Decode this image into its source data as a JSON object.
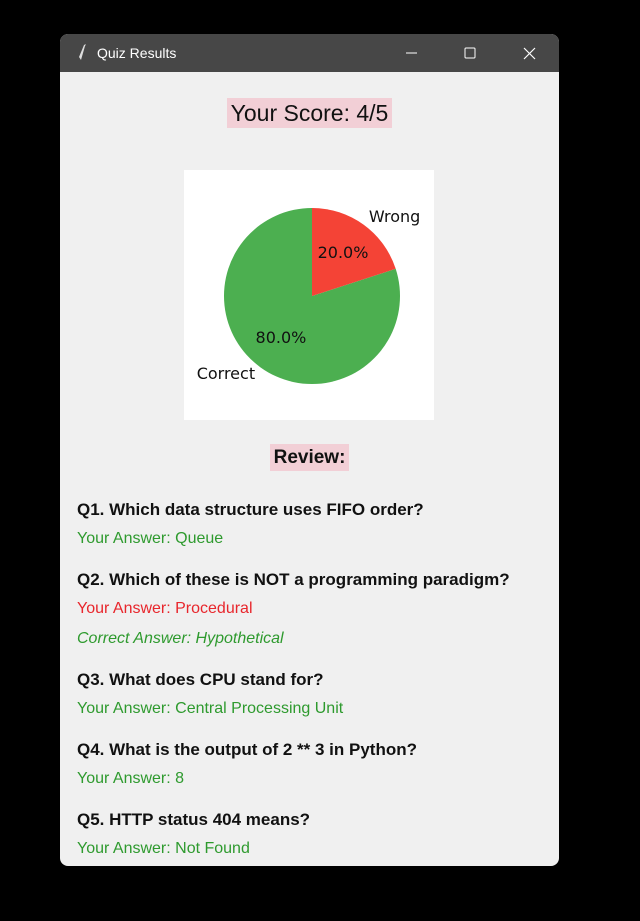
{
  "window": {
    "title": "Quiz Results"
  },
  "score": "Your Score: 4/5",
  "chart_data": {
    "type": "pie",
    "categories": [
      "Correct",
      "Wrong"
    ],
    "values": [
      80,
      20
    ],
    "value_labels": [
      "80.0%",
      "20.0%"
    ],
    "colors": [
      "#4caf50",
      "#f44336"
    ]
  },
  "review": {
    "heading": "Review:",
    "questions": [
      {
        "question": "Q1. Which data structure uses FIFO order?",
        "answer": "Your Answer: Queue"
      },
      {
        "question": "Q2. Which of these is NOT a programming paradigm?",
        "answer": "Your Answer: Procedural",
        "correct_answer": "Correct Answer: Hypothetical"
      },
      {
        "question": "Q3. What does CPU stand for?",
        "answer": "Your Answer: Central Processing Unit"
      },
      {
        "question": "Q4. What is the output of 2 ** 3 in Python?",
        "answer": "Your Answer: 8"
      },
      {
        "question": "Q5. HTTP status 404 means?",
        "answer": "Your Answer: Not Found"
      }
    ]
  }
}
